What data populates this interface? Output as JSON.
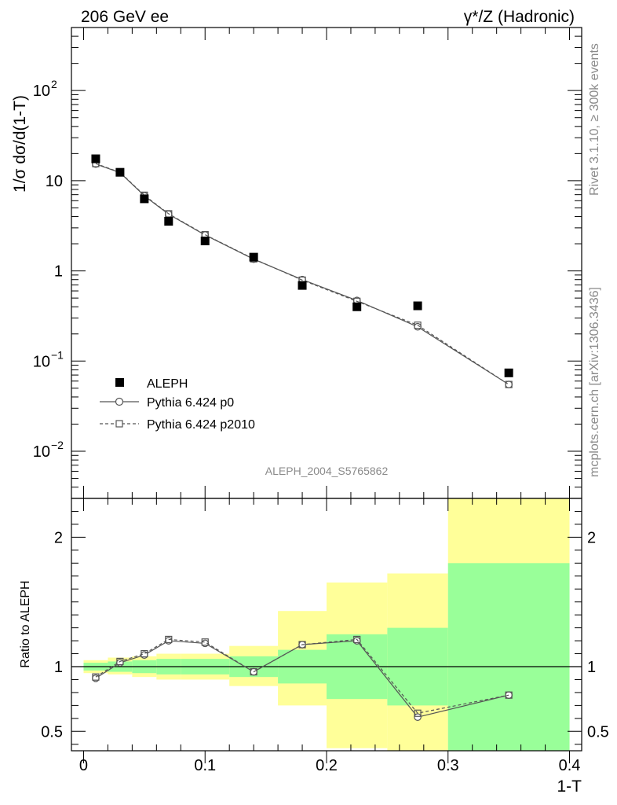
{
  "chart_data": {
    "type": "line",
    "title_left": "206 GeV ee",
    "title_right": "γ*/Z (Hadronic)",
    "ylabel_top": "1/σ  dσ/d(1-T)",
    "ylabel_bottom": "Ratio to ALEPH",
    "xlabel": "1-T",
    "side_label_top": "Rivet 3.1.10, ≥ 300k events",
    "side_label_bottom": "mcplots.cern.ch [arXiv:1306.3436]",
    "analysis_label": "ALEPH_2004_S5765862",
    "xlim": [
      -0.01,
      0.41
    ],
    "ylim_top": [
      0.003,
      500
    ],
    "ylim_bottom": [
      0.35,
      2.3
    ],
    "x_ticks": [
      {
        "v": 0,
        "label": "0"
      },
      {
        "v": 0.1,
        "label": "0.1"
      },
      {
        "v": 0.2,
        "label": "0.2"
      },
      {
        "v": 0.3,
        "label": "0.3"
      },
      {
        "v": 0.4,
        "label": "0.4"
      }
    ],
    "y_ticks_top": [
      {
        "v": 0.01,
        "base": "10",
        "exp": "−2"
      },
      {
        "v": 0.1,
        "base": "10",
        "exp": "−1"
      },
      {
        "v": 1,
        "base": "1",
        "exp": ""
      },
      {
        "v": 10,
        "base": "10",
        "exp": ""
      },
      {
        "v": 100,
        "base": "10",
        "exp": "2"
      }
    ],
    "y_ticks_bottom": [
      {
        "v": 0.5,
        "label": "0.5"
      },
      {
        "v": 1,
        "label": "1"
      },
      {
        "v": 2,
        "label": "2"
      }
    ],
    "bins": [
      [
        0.0,
        0.02
      ],
      [
        0.02,
        0.04
      ],
      [
        0.04,
        0.06
      ],
      [
        0.06,
        0.08
      ],
      [
        0.08,
        0.12
      ],
      [
        0.12,
        0.16
      ],
      [
        0.16,
        0.2
      ],
      [
        0.2,
        0.25
      ],
      [
        0.25,
        0.3
      ],
      [
        0.3,
        0.4
      ]
    ],
    "x": [
      0.01,
      0.03,
      0.05,
      0.07,
      0.1,
      0.14,
      0.18,
      0.225,
      0.275,
      0.35
    ],
    "series": [
      {
        "name": "ALEPH",
        "style": "marker",
        "values": [
          17.5,
          12.4,
          6.3,
          3.55,
          2.15,
          1.42,
          0.69,
          0.4,
          0.41,
          0.074
        ],
        "ratio": [
          1,
          1,
          1,
          1,
          1,
          1,
          1,
          1,
          1,
          1
        ]
      },
      {
        "name": "Pythia 6.424 p0",
        "style": "solid-circle",
        "values": [
          15.3,
          12.3,
          6.8,
          4.25,
          2.5,
          1.35,
          0.8,
          0.47,
          0.24,
          0.055
        ],
        "ratio": [
          0.91,
          1.03,
          1.09,
          1.2,
          1.18,
          0.96,
          1.17,
          1.2,
          0.61,
          0.78
        ]
      },
      {
        "name": "Pythia 6.424 p2010",
        "style": "dashed-square",
        "values": [
          15.5,
          12.4,
          6.9,
          4.3,
          2.52,
          1.36,
          0.79,
          0.46,
          0.25,
          0.055
        ],
        "ratio": [
          0.92,
          1.04,
          1.1,
          1.21,
          1.19,
          0.96,
          1.17,
          1.21,
          0.64,
          0.78
        ]
      }
    ],
    "uncertainty_bands": {
      "inner_green": [
        [
          0.97,
          1.03
        ],
        [
          0.96,
          1.04
        ],
        [
          0.95,
          1.05
        ],
        [
          0.94,
          1.06
        ],
        [
          0.94,
          1.06
        ],
        [
          0.92,
          1.08
        ],
        [
          0.87,
          1.13
        ],
        [
          0.75,
          1.25
        ],
        [
          0.7,
          1.3
        ],
        [
          0.35,
          1.8
        ]
      ],
      "outer_yellow": [
        [
          0.95,
          1.05
        ],
        [
          0.94,
          1.07
        ],
        [
          0.92,
          1.08
        ],
        [
          0.9,
          1.1
        ],
        [
          0.9,
          1.1
        ],
        [
          0.85,
          1.16
        ],
        [
          0.7,
          1.43
        ],
        [
          0.37,
          1.65
        ],
        [
          0.35,
          1.72
        ],
        [
          0.35,
          2.3
        ]
      ],
      "inner_color": "#99ff99",
      "outer_color": "#ffff99"
    }
  }
}
